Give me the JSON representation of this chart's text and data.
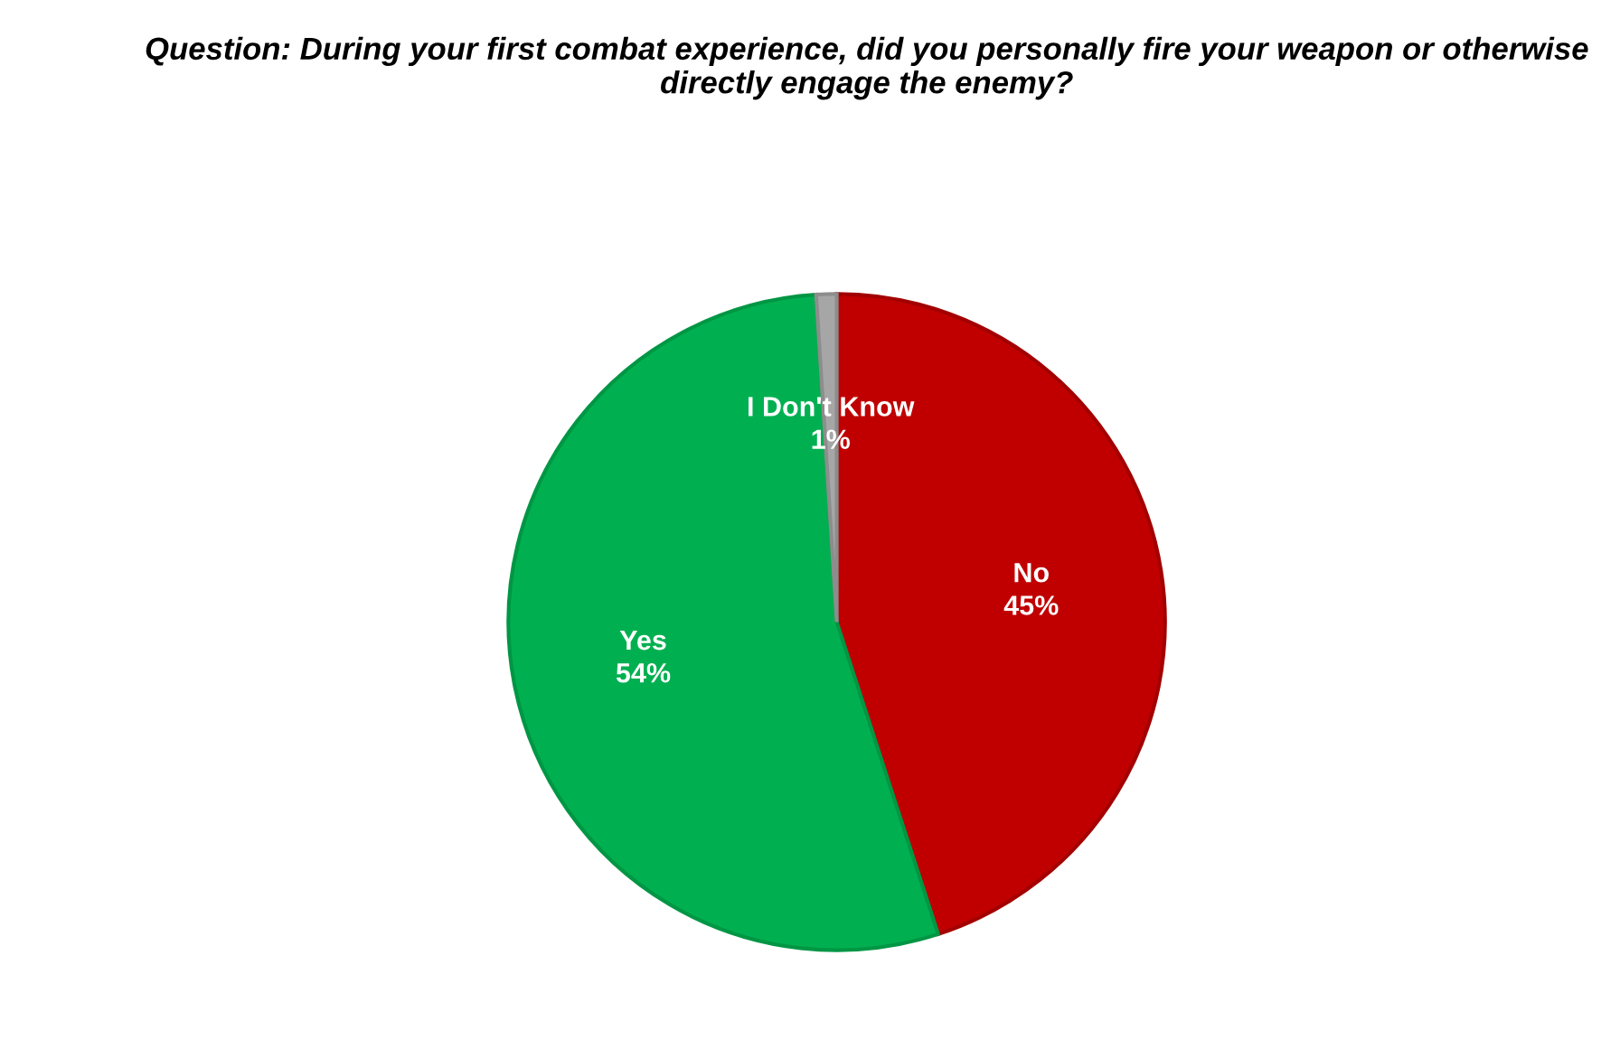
{
  "chart_data": {
    "type": "pie",
    "title": "Question: During your first combat experience, did you personally fire your weapon or otherwise directly engage the enemy?",
    "categories": [
      "No",
      "Yes",
      "I Don't Know"
    ],
    "values": [
      45,
      54,
      1
    ],
    "value_labels": [
      "45%",
      "54%",
      "1%"
    ],
    "colors": [
      "#c00000",
      "#00b050",
      "#a6a6a6"
    ],
    "legend": false
  }
}
